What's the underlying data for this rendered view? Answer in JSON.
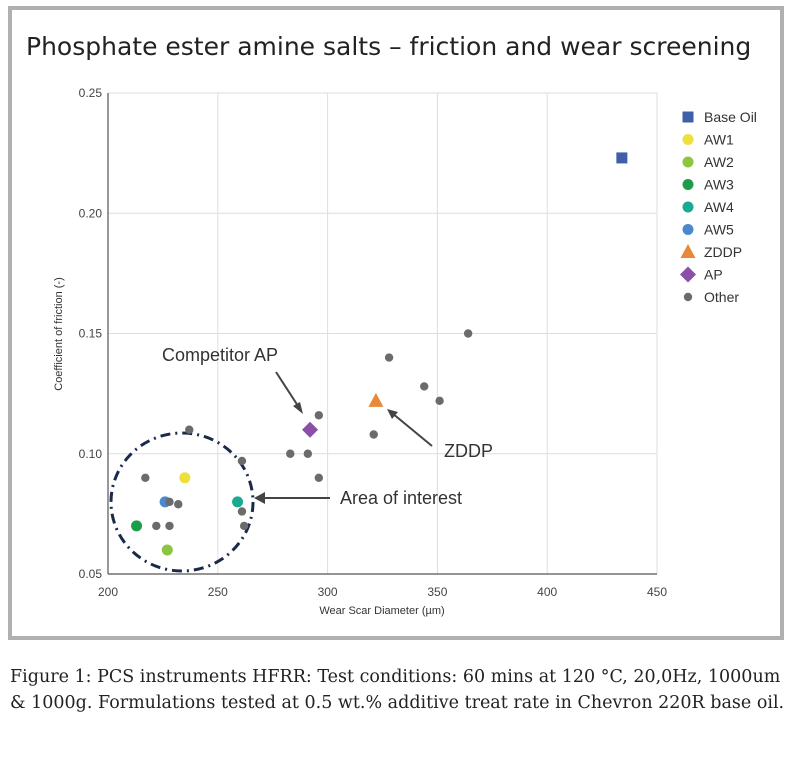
{
  "title": "Phosphate ester amine salts – friction and wear screening",
  "caption": "Figure 1: PCS instruments HFRR: Test conditions: 60 mins at 120 °C, 20,0Hz, 1000um & 1000g. Formulations tested at 0.5 wt.% additive treat rate in Chevron 220R base oil.",
  "chart_data": {
    "type": "scatter",
    "xlabel": "Wear Scar Diameter (µm)",
    "ylabel": "Coefficient of friction (-)",
    "xlim": [
      200,
      450
    ],
    "ylim": [
      0.05,
      0.25
    ],
    "xticks": [
      "200",
      "250",
      "300",
      "350",
      "400",
      "450"
    ],
    "yticks": [
      "0.05",
      "0.10",
      "0.15",
      "0.20",
      "0.25"
    ],
    "grid": true,
    "legend_position": "right",
    "series": [
      {
        "name": "Base Oil",
        "marker": "square",
        "color": "#3f5fa8",
        "points": [
          [
            434,
            0.223
          ]
        ]
      },
      {
        "name": "AW1",
        "marker": "circle",
        "color": "#ede03c",
        "points": [
          [
            235,
            0.09
          ]
        ]
      },
      {
        "name": "AW2",
        "marker": "circle",
        "color": "#8cc63f",
        "points": [
          [
            227,
            0.06
          ]
        ]
      },
      {
        "name": "AW3",
        "marker": "circle",
        "color": "#1a9e4a",
        "points": [
          [
            213,
            0.07
          ]
        ]
      },
      {
        "name": "AW4",
        "marker": "circle",
        "color": "#1aaa92",
        "points": [
          [
            259,
            0.08
          ]
        ]
      },
      {
        "name": "AW5",
        "marker": "circle",
        "color": "#4a89d0",
        "points": [
          [
            226,
            0.08
          ]
        ]
      },
      {
        "name": "ZDDP",
        "marker": "triangle",
        "color": "#e8893a",
        "points": [
          [
            322,
            0.122
          ]
        ]
      },
      {
        "name": "AP",
        "marker": "diamond",
        "color": "#8b4fa8",
        "points": [
          [
            292,
            0.11
          ]
        ]
      },
      {
        "name": "Other",
        "marker": "circle-small",
        "color": "#6b6b6b",
        "points": [
          [
            217,
            0.09
          ],
          [
            222,
            0.07
          ],
          [
            228,
            0.08
          ],
          [
            228,
            0.07
          ],
          [
            232,
            0.079
          ],
          [
            237,
            0.11
          ],
          [
            261,
            0.097
          ],
          [
            261,
            0.076
          ],
          [
            262,
            0.07
          ],
          [
            283,
            0.1
          ],
          [
            291,
            0.1
          ],
          [
            296,
            0.116
          ],
          [
            296,
            0.09
          ],
          [
            321,
            0.108
          ],
          [
            328,
            0.14
          ],
          [
            344,
            0.128
          ],
          [
            351,
            0.122
          ],
          [
            364,
            0.15
          ]
        ]
      }
    ],
    "annotations": [
      "Competitor AP",
      "ZDDP",
      "Area of interest"
    ]
  }
}
